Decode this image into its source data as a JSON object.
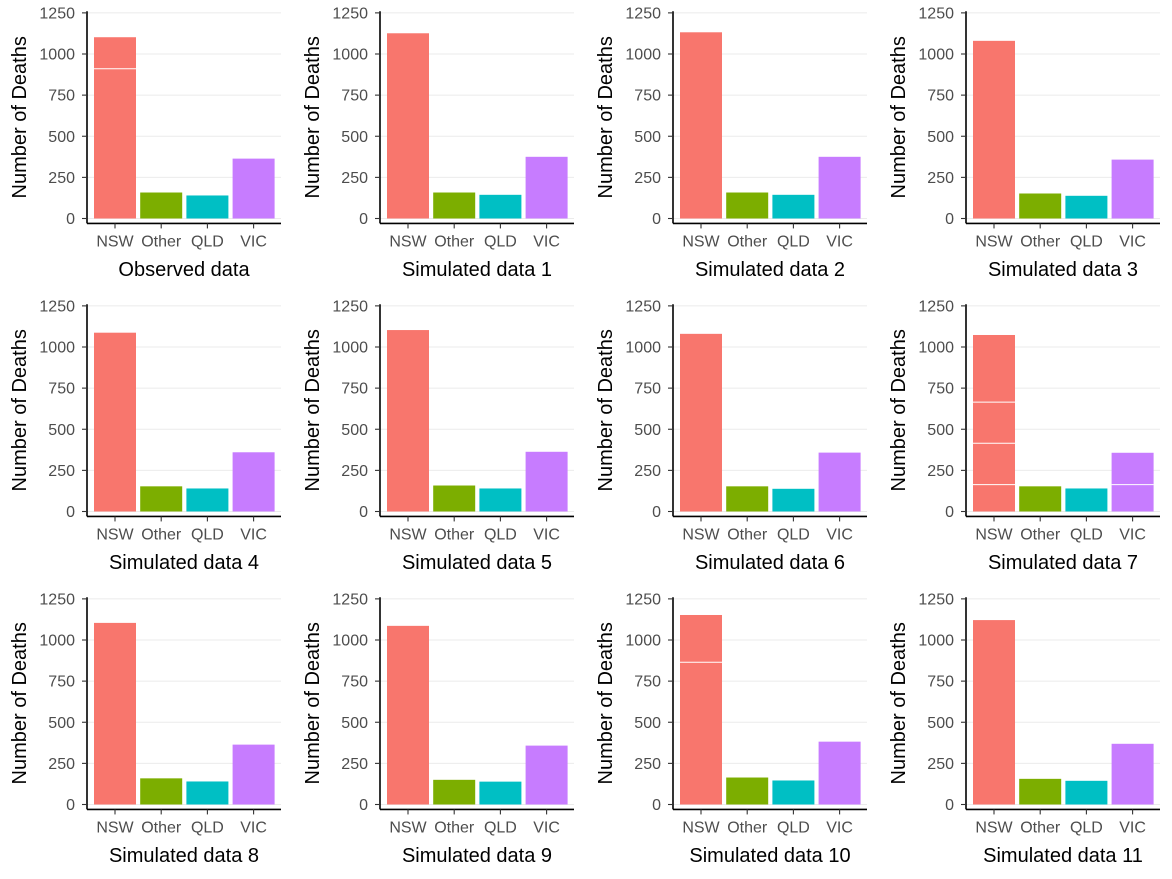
{
  "chart_data": {
    "type": "bar",
    "layout": "3x4 grid of bar charts",
    "ylabel": "Number of Deaths",
    "categories": [
      "NSW",
      "Other",
      "QLD",
      "VIC"
    ],
    "colors": {
      "NSW": "#F8766D",
      "Other": "#7CAE00",
      "QLD": "#00BFC4",
      "VIC": "#C77CFF"
    },
    "yticks": [
      "0",
      "250",
      "500",
      "750",
      "1000",
      "1250"
    ],
    "ylim": [
      -30,
      1260
    ],
    "panels": [
      {
        "title": "Observed data",
        "title_color": "#FF0000",
        "values": [
          1102,
          158,
          140,
          364
        ],
        "stripes": [
          [
            910
          ]
        ]
      },
      {
        "title": "Simulated data 1",
        "values": [
          1126,
          158,
          144,
          375
        ],
        "stripes": []
      },
      {
        "title": "Simulated data 2",
        "values": [
          1132,
          158,
          144,
          375
        ],
        "stripes": []
      },
      {
        "title": "Simulated data 3",
        "values": [
          1080,
          152,
          138,
          358
        ],
        "stripes": []
      },
      {
        "title": "Simulated data 4",
        "values": [
          1087,
          153,
          140,
          360
        ],
        "stripes": []
      },
      {
        "title": "Simulated data 5",
        "values": [
          1103,
          158,
          140,
          363
        ],
        "stripes": []
      },
      {
        "title": "Simulated data 6",
        "values": [
          1080,
          153,
          138,
          358
        ],
        "stripes": []
      },
      {
        "title": "Simulated data 7",
        "values": [
          1073,
          153,
          140,
          357
        ],
        "stripes": [
          [
            665,
            415,
            163
          ],
          [],
          [],
          [
            163
          ]
        ]
      },
      {
        "title": "Simulated data 8",
        "values": [
          1104,
          159,
          140,
          364
        ],
        "stripes": []
      },
      {
        "title": "Simulated data 9",
        "values": [
          1086,
          150,
          139,
          358
        ],
        "stripes": []
      },
      {
        "title": "Simulated data 10",
        "values": [
          1152,
          164,
          146,
          382
        ],
        "stripes": [
          [
            865
          ]
        ]
      },
      {
        "title": "Simulated data 11",
        "values": [
          1121,
          156,
          144,
          369
        ],
        "stripes": []
      }
    ]
  }
}
